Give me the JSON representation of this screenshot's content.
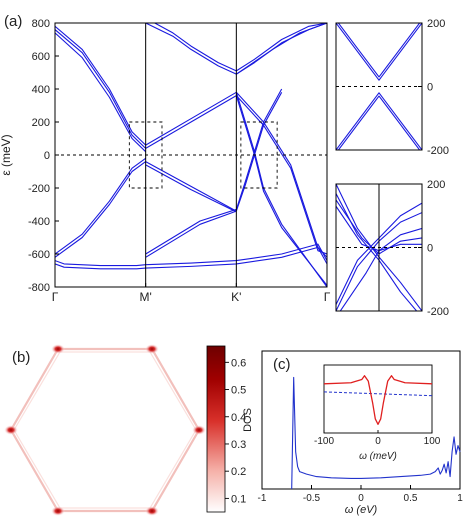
{
  "panel_labels": {
    "a": "(a)",
    "b": "(b)",
    "c": "(c)"
  },
  "colors": {
    "band": "#1a1adf",
    "dos": "#2233cc",
    "inset": "#e02020",
    "axis": "#000000"
  },
  "chart_data": [
    {
      "type": "line",
      "panel": "(a) main",
      "ylabel": "ε (meV)",
      "ylim": [
        -800,
        800
      ],
      "yticks": [
        "800",
        "600",
        "400",
        "200",
        "0",
        "-200",
        "-400",
        "-600",
        "-800"
      ],
      "ytick_values": [
        800,
        600,
        400,
        200,
        0,
        -200,
        -400,
        -600,
        -800
      ],
      "x_ticks": [
        "Γ",
        "M'",
        "K'",
        "Γ"
      ],
      "x_tick_pos": [
        0,
        1,
        2,
        3
      ],
      "series": [
        {
          "x": [
            0,
            0.3,
            0.6,
            0.85,
            1.0
          ],
          "y": [
            780,
            640,
            400,
            140,
            60
          ]
        },
        {
          "x": [
            0,
            0.3,
            0.6,
            0.85,
            1.0
          ],
          "y": [
            760,
            620,
            380,
            120,
            40
          ]
        },
        {
          "x": [
            0,
            0.3,
            0.6,
            0.85,
            1.0
          ],
          "y": [
            740,
            590,
            350,
            100,
            20
          ]
        },
        {
          "x": [
            0,
            0.3,
            0.6,
            0.85,
            1.0
          ],
          "y": [
            -620,
            -500,
            -300,
            -100,
            -40
          ]
        },
        {
          "x": [
            0,
            0.3,
            0.6,
            0.85,
            1.0
          ],
          "y": [
            -600,
            -480,
            -280,
            -80,
            -20
          ]
        },
        {
          "x": [
            0,
            0.1,
            0.5,
            0.9,
            1.0,
            1.5,
            2.0,
            2.5,
            2.9,
            3.0
          ],
          "y": [
            -640,
            -660,
            -670,
            -670,
            -665,
            -655,
            -640,
            -600,
            -540,
            -640
          ]
        },
        {
          "x": [
            0,
            0.1,
            0.5,
            0.9,
            1.0,
            1.5,
            2.0,
            2.5,
            2.9,
            3.0
          ],
          "y": [
            -660,
            -680,
            -690,
            -690,
            -685,
            -675,
            -660,
            -620,
            -560,
            -660
          ]
        },
        {
          "x": [
            1.0,
            1.5,
            2.0
          ],
          "y": [
            60,
            220,
            380
          ]
        },
        {
          "x": [
            1.0,
            1.5,
            2.0
          ],
          "y": [
            40,
            200,
            360
          ]
        },
        {
          "x": [
            1.0,
            1.5,
            2.0
          ],
          "y": [
            -40,
            -190,
            -340
          ]
        },
        {
          "x": [
            1.0,
            1.5,
            2.0
          ],
          "y": [
            -60,
            -210,
            -345
          ]
        },
        {
          "x": [
            1.0,
            1.3,
            1.6,
            2.0
          ],
          "y": [
            -620,
            -520,
            -420,
            -340
          ]
        },
        {
          "x": [
            1.0,
            1.3,
            1.6,
            2.0
          ],
          "y": [
            -600,
            -500,
            -400,
            -330
          ]
        },
        {
          "x": [
            1.0,
            1.3,
            1.5,
            1.8,
            2.0,
            2.2,
            2.5,
            2.8,
            3.0
          ],
          "y": [
            800,
            720,
            640,
            540,
            490,
            560,
            680,
            760,
            800
          ]
        },
        {
          "x": [
            1.1,
            1.3,
            1.5,
            1.8,
            2.0,
            2.2,
            2.5,
            2.8,
            3.0
          ],
          "y": [
            800,
            740,
            660,
            560,
            510,
            580,
            700,
            780,
            800
          ]
        },
        {
          "x": [
            2.0,
            2.1,
            2.2,
            2.3,
            2.5,
            3.0
          ],
          "y": [
            380,
            200,
            20,
            -200,
            -420,
            -800
          ]
        },
        {
          "x": [
            2.0,
            2.1,
            2.2,
            2.3,
            2.5,
            3.0
          ],
          "y": [
            360,
            180,
            0,
            -220,
            -440,
            -790
          ]
        },
        {
          "x": [
            2.0,
            2.1,
            2.2,
            2.3,
            2.5
          ],
          "y": [
            -340,
            -180,
            0,
            180,
            380
          ]
        },
        {
          "x": [
            2.0,
            2.1,
            2.2,
            2.3,
            2.5
          ],
          "y": [
            -330,
            -160,
            20,
            200,
            400
          ]
        },
        {
          "x": [
            2.0,
            2.3,
            2.6,
            2.9,
            3.0
          ],
          "y": [
            380,
            200,
            -60,
            -560,
            -620
          ]
        },
        {
          "x": [
            2.0,
            2.3,
            2.6,
            2.9,
            3.0
          ],
          "y": [
            360,
            180,
            -80,
            -580,
            -600
          ]
        },
        {
          "x": [
            2.0,
            2.4,
            2.7,
            2.95,
            3.0
          ],
          "y": [
            490,
            640,
            740,
            790,
            800
          ]
        }
      ],
      "zoom_boxes": [
        {
          "x": [
            0.82,
            1.18
          ],
          "y": [
            -200,
            200
          ]
        },
        {
          "x": [
            2.05,
            2.45
          ],
          "y": [
            -200,
            200
          ]
        }
      ]
    },
    {
      "type": "line",
      "panel": "(a) inset top",
      "ylim": [
        -200,
        200
      ],
      "yticks": [
        "200",
        "0",
        "-200"
      ],
      "ytick_values": [
        200,
        0,
        -200
      ],
      "series": [
        {
          "x": [
            -1,
            -0.5,
            0,
            0.5,
            1
          ],
          "y": [
            200,
            110,
            20,
            110,
            200
          ]
        },
        {
          "x": [
            -1,
            -0.5,
            0,
            0.5,
            1
          ],
          "y": [
            210,
            120,
            30,
            120,
            210
          ]
        },
        {
          "x": [
            -1,
            -0.5,
            0,
            0.5,
            1
          ],
          "y": [
            -200,
            -110,
            -20,
            -110,
            -200
          ]
        },
        {
          "x": [
            -1,
            -0.5,
            0,
            0.5,
            1
          ],
          "y": [
            -210,
            -120,
            -30,
            -120,
            -210
          ]
        }
      ]
    },
    {
      "type": "line",
      "panel": "(a) inset bottom",
      "ylim": [
        -200,
        200
      ],
      "yticks": [
        "200",
        "0",
        "-200"
      ],
      "ytick_values": [
        200,
        0,
        -200
      ],
      "series": [
        {
          "x": [
            -1,
            -0.5,
            0,
            0.5,
            1
          ],
          "y": [
            200,
            60,
            -30,
            -110,
            -200
          ]
        },
        {
          "x": [
            -1,
            -0.5,
            0,
            0.5,
            1
          ],
          "y": [
            170,
            40,
            -40,
            -140,
            -220
          ]
        },
        {
          "x": [
            -1,
            -0.5,
            0,
            0.5,
            1
          ],
          "y": [
            -200,
            -60,
            20,
            80,
            110
          ]
        },
        {
          "x": [
            -1,
            -0.5,
            0,
            0.5,
            1
          ],
          "y": [
            -180,
            -40,
            30,
            100,
            140
          ]
        },
        {
          "x": [
            -1,
            -0.4,
            0,
            0.5,
            1
          ],
          "y": [
            150,
            30,
            -20,
            20,
            30
          ]
        },
        {
          "x": [
            -1,
            -0.4,
            0,
            0.5,
            1
          ],
          "y": [
            130,
            10,
            -10,
            40,
            60
          ]
        },
        {
          "x": [
            -1,
            -0.3,
            0,
            0.5,
            1
          ],
          "y": [
            -220,
            -80,
            -10,
            10,
            10
          ]
        }
      ]
    },
    {
      "type": "heatmap",
      "panel": "(b)",
      "colorbar_ticks": [
        "0.6",
        "0.5",
        "0.4",
        "0.3",
        "0.2",
        "0.1"
      ],
      "colorbar_values": [
        0.6,
        0.5,
        0.4,
        0.3,
        0.2,
        0.1
      ],
      "colorbar_range": [
        0.05,
        0.66
      ]
    },
    {
      "type": "line",
      "panel": "(c)",
      "ylabel": "DOS",
      "xlabel": "ω (eV)",
      "xlim": [
        -1,
        1
      ],
      "xticks": [
        "-1",
        "-0.5",
        "0",
        "0.5",
        "1"
      ],
      "xtick_values": [
        -1,
        -0.5,
        0,
        0.5,
        1
      ],
      "series": [
        {
          "x": [
            -0.7,
            -0.68,
            -0.66,
            -0.64,
            -0.62,
            -0.55,
            -0.45,
            -0.3,
            -0.1,
            0,
            0.2,
            0.4,
            0.6,
            0.7,
            0.75,
            0.78,
            0.8,
            0.82,
            0.84,
            0.86,
            0.88,
            0.9,
            0.92,
            0.94,
            0.96,
            0.98,
            1.0
          ],
          "y": [
            0.0,
            0.9,
            0.3,
            0.18,
            0.14,
            0.12,
            0.1,
            0.09,
            0.085,
            0.085,
            0.09,
            0.1,
            0.11,
            0.12,
            0.14,
            0.17,
            0.12,
            0.15,
            0.2,
            0.13,
            0.22,
            0.1,
            0.3,
            0.42,
            0.28,
            0.35,
            0.3
          ]
        }
      ],
      "inset": {
        "xlabel": "ω (meV)",
        "xlim": [
          -100,
          100
        ],
        "xticks": [
          "-100",
          "0",
          "100"
        ],
        "xtick_values": [
          -100,
          0,
          100
        ],
        "series": [
          {
            "x": [
              -100,
              -50,
              -30,
              -25,
              -18,
              -10,
              -5,
              0,
              5,
              10,
              18,
              25,
              30,
              50,
              100
            ],
            "y": [
              0.7,
              0.72,
              0.78,
              0.85,
              0.75,
              0.35,
              0.05,
              -0.05,
              0.05,
              0.35,
              0.75,
              0.85,
              0.78,
              0.72,
              0.7
            ]
          }
        ],
        "baseline": {
          "x": [
            -100,
            100
          ],
          "y": [
            0.55,
            0.48
          ]
        }
      }
    }
  ]
}
